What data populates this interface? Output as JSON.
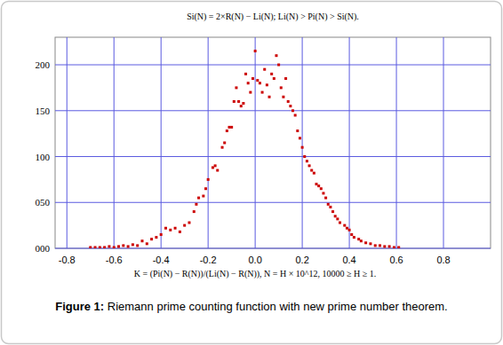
{
  "chart_data": {
    "type": "scatter",
    "title": "Si(N) = 2×R(N) − Li(N); Li(N) > Pi(N) > Si(N).",
    "x_label": "K = (Pi(N) − R(N))/(Li(N) − R(N)), N = H × 10^12, 10000 ≥ H ≥ 1.",
    "caption": "Figure 1: Riemann prime counting function with new prime number theorem.",
    "x": [
      -0.7,
      -0.68,
      -0.66,
      -0.64,
      -0.62,
      -0.6,
      -0.58,
      -0.56,
      -0.54,
      -0.52,
      -0.5,
      -0.48,
      -0.46,
      -0.44,
      -0.42,
      -0.4,
      -0.38,
      -0.36,
      -0.34,
      -0.32,
      -0.3,
      -0.28,
      -0.26,
      -0.25,
      -0.24,
      -0.22,
      -0.21,
      -0.2,
      -0.18,
      -0.17,
      -0.16,
      -0.14,
      -0.13,
      -0.12,
      -0.11,
      -0.1,
      -0.09,
      -0.08,
      -0.07,
      -0.06,
      -0.05,
      -0.04,
      -0.03,
      -0.02,
      -0.01,
      0.0,
      0.01,
      0.02,
      0.03,
      0.04,
      0.05,
      0.06,
      0.07,
      0.08,
      0.09,
      0.1,
      0.11,
      0.12,
      0.13,
      0.14,
      0.15,
      0.16,
      0.17,
      0.18,
      0.19,
      0.2,
      0.21,
      0.22,
      0.23,
      0.24,
      0.25,
      0.26,
      0.27,
      0.28,
      0.29,
      0.3,
      0.31,
      0.32,
      0.33,
      0.34,
      0.35,
      0.36,
      0.38,
      0.39,
      0.4,
      0.41,
      0.42,
      0.44,
      0.45,
      0.47,
      0.49,
      0.51,
      0.53,
      0.55,
      0.57,
      0.59,
      0.61
    ],
    "values": [
      1,
      1,
      1,
      1,
      2,
      1,
      2,
      3,
      2,
      4,
      3,
      8,
      5,
      10,
      12,
      15,
      22,
      20,
      22,
      18,
      25,
      28,
      40,
      48,
      55,
      57,
      65,
      75,
      88,
      90,
      85,
      110,
      115,
      128,
      132,
      132,
      160,
      175,
      160,
      155,
      158,
      190,
      180,
      170,
      185,
      215,
      183,
      180,
      170,
      195,
      178,
      165,
      190,
      185,
      210,
      200,
      175,
      165,
      185,
      160,
      155,
      150,
      145,
      128,
      120,
      110,
      100,
      95,
      90,
      85,
      82,
      70,
      68,
      65,
      60,
      55,
      48,
      45,
      40,
      35,
      32,
      28,
      25,
      22,
      20,
      15,
      12,
      10,
      8,
      6,
      5,
      3,
      3,
      2,
      2,
      1,
      1
    ],
    "color": "#cc0000",
    "marker": "square",
    "xlim": [
      -0.85,
      1.0
    ],
    "xticks": [
      -0.8,
      -0.6,
      -0.4,
      -0.2,
      {
        "value": 0,
        "label": "0.0"
      },
      0.2,
      0.4,
      0.6,
      0.8
    ],
    "ylim": [
      0,
      230
    ],
    "yticks": [
      {
        "value": 0,
        "label": "000"
      },
      {
        "value": 50,
        "label": "050"
      },
      100,
      150,
      200
    ],
    "grid": true
  }
}
